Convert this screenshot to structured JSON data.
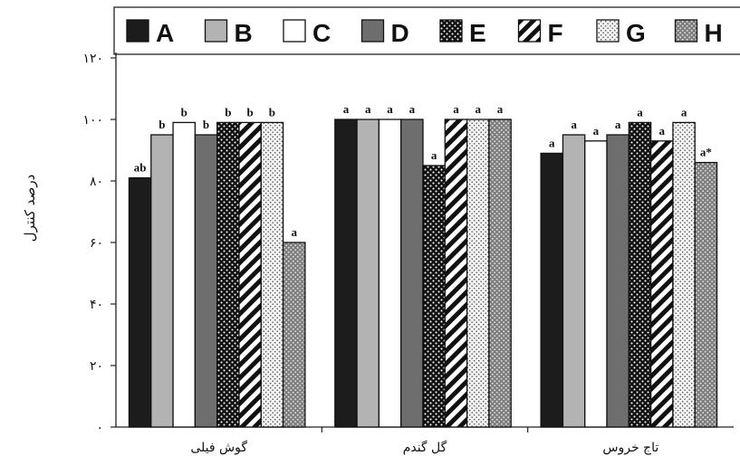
{
  "chart_data": {
    "type": "bar",
    "ylabel": "درصد کنترل",
    "ylim": [
      0,
      120
    ],
    "yticks": [
      {
        "value": 0,
        "label": "۰"
      },
      {
        "value": 20,
        "label": "۲۰"
      },
      {
        "value": 40,
        "label": "۴۰"
      },
      {
        "value": 60,
        "label": "۶۰"
      },
      {
        "value": 80,
        "label": "۸۰"
      },
      {
        "value": 100,
        "label": "۱۰۰"
      },
      {
        "value": 120,
        "label": "۱۲۰"
      }
    ],
    "categories": [
      "گوش فیلی",
      "گل گندم",
      "تاج خروس"
    ],
    "legend_position": "top",
    "series": [
      {
        "name": "A",
        "values": [
          81,
          100,
          89
        ],
        "letters": [
          "ab",
          "a",
          "a"
        ],
        "color": "#1c1c1c",
        "pattern": "solid-dark"
      },
      {
        "name": "B",
        "values": [
          95,
          100,
          95
        ],
        "letters": [
          "b",
          "a",
          "a"
        ],
        "color": "#b3b3b3",
        "pattern": "solid-light"
      },
      {
        "name": "C",
        "values": [
          99,
          100,
          93
        ],
        "letters": [
          "b",
          "a",
          "a"
        ],
        "color": "#ffffff",
        "pattern": "white"
      },
      {
        "name": "D",
        "values": [
          95,
          100,
          95
        ],
        "letters": [
          "b",
          "a",
          "a"
        ],
        "color": "#6e6e6e",
        "pattern": "solid-mid"
      },
      {
        "name": "E",
        "values": [
          99,
          85,
          99
        ],
        "letters": [
          "b",
          "a",
          "a"
        ],
        "color": "#111111",
        "pattern": "dots-on-black"
      },
      {
        "name": "F",
        "values": [
          99,
          100,
          93
        ],
        "letters": [
          "b",
          "a",
          "a"
        ],
        "color": "#ffffff",
        "pattern": "diagonal-stripes"
      },
      {
        "name": "G",
        "values": [
          99,
          100,
          99
        ],
        "letters": [
          "b",
          "a",
          "a"
        ],
        "color": "#e6e6e6",
        "pattern": "fine-dots"
      },
      {
        "name": "H",
        "values": [
          60,
          100,
          86
        ],
        "letters": [
          "a",
          "a",
          "a*"
        ],
        "color": "#8a8a8a",
        "pattern": "coarse-dots"
      }
    ]
  }
}
